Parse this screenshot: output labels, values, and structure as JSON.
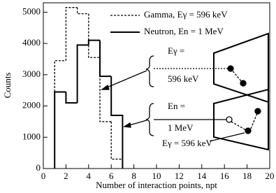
{
  "chart_data": {
    "type": "histogram",
    "xlabel": "Number of interaction points, npt",
    "ylabel": "Counts",
    "bins": [
      1,
      2,
      3,
      4,
      5,
      6,
      7
    ],
    "series": [
      {
        "name": "Gamma, Eγ = 596 keV",
        "color": "#000000",
        "dash": true,
        "values": [
          3450,
          5150,
          4950,
          3550,
          1500,
          300
        ]
      },
      {
        "name": "Neutron, En = 1 MeV",
        "color": "#000000",
        "dash": false,
        "values": [
          2450,
          2100,
          3950,
          4100,
          2950,
          1700
        ]
      }
    ],
    "xlim": [
      0,
      20
    ],
    "xticks": [
      0,
      2,
      4,
      6,
      8,
      10,
      12,
      14,
      16,
      18,
      20
    ],
    "ylim": [
      0,
      5300
    ],
    "yticks": [
      0,
      1000,
      2000,
      3000,
      4000,
      5000
    ],
    "annotations": [
      "Eγ =",
      "596 keV",
      "En =",
      "1 MeV",
      "Eγ = 596 keV"
    ]
  }
}
